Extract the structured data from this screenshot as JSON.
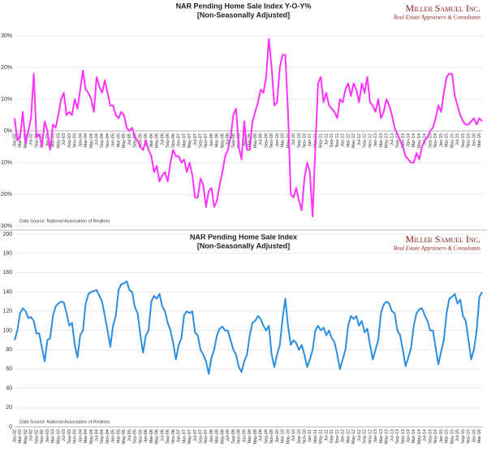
{
  "chart_data": [
    {
      "type": "line",
      "title": "NAR Pending Home Sale Index Y-O-Y%",
      "subtitle": "[Non-Seasonally Adjusted]",
      "brand": "Miller Samuel Inc.",
      "brand_tagline": "Real Estate Appraisers & Consultants",
      "source": "Data Source: National Association of Realtors",
      "categories": [
        "Jan-02",
        null,
        "Mar-02",
        null,
        "May-02",
        null,
        "Jul-02",
        null,
        "Sep-02",
        null,
        "Nov-02",
        null,
        "Jan-03",
        null,
        "Mar-03",
        null,
        "May-03",
        null,
        "Jul-03",
        null,
        "Sep-03",
        null,
        "Nov-03",
        null,
        "Jan-04",
        null,
        "Mar-04",
        null,
        "May-04",
        null,
        "Jul-04",
        null,
        "Sep-04",
        null,
        "Nov-04",
        null,
        "Jan-05",
        null,
        "Mar-05",
        null,
        "May-05",
        null,
        "Jul-05",
        null,
        "Sep-05",
        null,
        "Nov-05",
        null,
        "Jan-06",
        null,
        "Mar-06",
        null,
        "May-06",
        null,
        "Jul-06",
        null,
        "Sep-06",
        null,
        "Nov-06",
        null,
        "Jan-07",
        null,
        "Mar-07",
        null,
        "May-07",
        null,
        "Jul-07",
        null,
        "Sep-07",
        null,
        "Nov-07",
        null,
        "Jan-08",
        null,
        "Mar-08",
        null,
        "May-08",
        null,
        "Jul-08",
        null,
        "Sep-08",
        null,
        "Nov-08",
        null,
        "Jan-09",
        null,
        "Mar-09",
        null,
        "May-09",
        null,
        "Jul-09",
        null,
        "Sep-09",
        null,
        "Nov-09",
        null,
        "Jan-10",
        null,
        "Mar-10",
        null,
        "May-10",
        null,
        "Jul-10",
        null,
        "Sep-10",
        null,
        "Nov-10",
        null,
        "Jan-11",
        null,
        "Mar-11",
        null,
        "May-11",
        null,
        "Jul-11",
        null,
        "Sep-11",
        null,
        "Nov-11",
        null,
        "Jan-12",
        null,
        "Mar-12",
        null,
        "May-12",
        null,
        "Jul-12",
        null,
        "Sep-12",
        null,
        "Nov-12",
        null,
        "Jan-13",
        null,
        "Mar-13",
        null,
        "May-13",
        null,
        "Jul-13",
        null,
        "Sep-13",
        null,
        "Nov-13",
        null,
        "Jan-14",
        null,
        "Mar-14",
        null,
        "May-14",
        null,
        "Jul-14",
        null,
        "Sep-14",
        null,
        "Nov-14",
        null,
        "Jan-15",
        null,
        "Mar-15",
        null,
        "May-15",
        null,
        "Jul-15",
        null,
        "Sep-15",
        null,
        "Nov-15",
        null,
        "Jan-16",
        null,
        "Mar-16",
        null
      ],
      "series": [
        {
          "color": "#ff33ff",
          "values": [
            4,
            -3,
            -2,
            6,
            -4,
            0,
            4,
            18,
            -2,
            -1,
            -5,
            3,
            0,
            -6,
            2,
            1,
            5,
            10,
            12,
            5,
            6,
            5,
            10,
            7,
            13,
            19,
            13,
            12,
            10,
            6,
            17,
            14,
            12,
            16,
            12,
            8,
            8,
            5,
            4,
            6,
            5,
            1,
            0,
            1,
            -2,
            -3,
            -5,
            -6,
            -3,
            -6,
            -8,
            -13,
            -11,
            -16,
            -14,
            -13,
            -16,
            -10,
            -6,
            -8,
            -8,
            -10,
            -9,
            -13,
            -10,
            -14,
            -21,
            -21,
            -15,
            -17,
            -24,
            -19,
            -18,
            -24,
            -22,
            -17,
            -13,
            -8,
            -6,
            -2,
            5,
            7,
            -5,
            -9,
            3,
            -6,
            -6,
            3,
            6,
            9,
            13,
            12,
            17,
            29,
            20,
            8,
            9,
            20,
            24,
            24,
            6,
            -20,
            -21,
            -18,
            -22,
            -25,
            -15,
            -10,
            -13,
            -27,
            -5,
            15,
            17,
            9,
            12,
            8,
            7,
            6,
            4,
            10,
            9,
            13,
            15,
            11,
            15,
            13,
            9,
            15,
            12,
            17,
            9,
            8,
            6,
            10,
            4,
            6,
            10,
            8,
            5,
            1,
            -1,
            -3,
            -5,
            -8,
            -9,
            -10,
            -10,
            -7,
            -9,
            -5,
            -3,
            -2,
            0,
            1,
            4,
            8,
            6,
            12,
            17,
            18,
            18,
            11,
            8,
            5,
            3,
            2,
            2,
            3,
            4,
            2,
            4,
            3
          ]
        }
      ],
      "ylim": [
        -30,
        30
      ],
      "yticks": [
        {
          "value": -30,
          "label": "-30%"
        },
        {
          "value": -20,
          "label": "-20%"
        },
        {
          "value": -10,
          "label": "-10%"
        },
        {
          "value": 0,
          "label": "0%"
        },
        {
          "value": 10,
          "label": "10%"
        },
        {
          "value": 20,
          "label": "20%"
        },
        {
          "value": 30,
          "label": "30%"
        }
      ],
      "grid": true
    },
    {
      "type": "line",
      "title": "NAR Pending Home Sale Index",
      "subtitle": "[Non-Seasonally Adjusted]",
      "brand": "Miller Samuel Inc.",
      "brand_tagline": "Real Estate Appraisers & Consultants",
      "source": "Data Source: National Association of Realtors",
      "categories": [
        "Jan-02",
        null,
        "Mar-02",
        null,
        "May-02",
        null,
        "Jul-02",
        null,
        "Sep-02",
        null,
        "Nov-02",
        null,
        "Jan-03",
        null,
        "Mar-03",
        null,
        "May-03",
        null,
        "Jul-03",
        null,
        "Sep-03",
        null,
        "Nov-03",
        null,
        "Jan-04",
        null,
        "Mar-04",
        null,
        "May-04",
        null,
        "Jul-04",
        null,
        "Sep-04",
        null,
        "Nov-04",
        null,
        "Jan-05",
        null,
        "Mar-05",
        null,
        "May-05",
        null,
        "Jul-05",
        null,
        "Sep-05",
        null,
        "Nov-05",
        null,
        "Jan-06",
        null,
        "Mar-06",
        null,
        "May-06",
        null,
        "Jul-06",
        null,
        "Sep-06",
        null,
        "Nov-06",
        null,
        "Jan-07",
        null,
        "Mar-07",
        null,
        "May-07",
        null,
        "Jul-07",
        null,
        "Sep-07",
        null,
        "Nov-07",
        null,
        "Jan-08",
        null,
        "Mar-08",
        null,
        "May-08",
        null,
        "Jul-08",
        null,
        "Sep-08",
        null,
        "Nov-08",
        null,
        "Jan-09",
        null,
        "Mar-09",
        null,
        "May-09",
        null,
        "Jul-09",
        null,
        "Sep-09",
        null,
        "Nov-09",
        null,
        "Jan-10",
        null,
        "Mar-10",
        null,
        "May-10",
        null,
        "Jul-10",
        null,
        "Sep-10",
        null,
        "Nov-10",
        null,
        "Jan-11",
        null,
        "Mar-11",
        null,
        "May-11",
        null,
        "Jul-11",
        null,
        "Sep-11",
        null,
        "Nov-11",
        null,
        "Jan-12",
        null,
        "Mar-12",
        null,
        "May-12",
        null,
        "Jul-12",
        null,
        "Sep-12",
        null,
        "Nov-12",
        null,
        "Jan-13",
        null,
        "Mar-13",
        null,
        "May-13",
        null,
        "Jul-13",
        null,
        "Sep-13",
        null,
        "Nov-13",
        null,
        "Jan-14",
        null,
        "Mar-14",
        null,
        "May-14",
        null,
        "Jul-14",
        null,
        "Sep-14",
        null,
        "Nov-14",
        null,
        "Jan-15",
        null,
        "Mar-15",
        null,
        "May-15",
        null,
        "Jul-15",
        null,
        "Sep-15",
        null,
        "Nov-15",
        null,
        "Jan-16",
        null,
        "Mar-16",
        null
      ],
      "series": [
        {
          "color": "#2b8ee0",
          "values": [
            90,
            100,
            118,
            123,
            120,
            113,
            114,
            110,
            97,
            97,
            82,
            68,
            90,
            92,
            115,
            125,
            128,
            130,
            129,
            118,
            105,
            108,
            85,
            72,
            95,
            100,
            128,
            138,
            140,
            141,
            142,
            136,
            130,
            115,
            100,
            83,
            105,
            115,
            142,
            148,
            149,
            151,
            142,
            140,
            124,
            118,
            95,
            77,
            95,
            100,
            130,
            136,
            133,
            138,
            125,
            120,
            108,
            100,
            87,
            70,
            85,
            92,
            116,
            120,
            118,
            120,
            98,
            95,
            80,
            75,
            68,
            55,
            72,
            80,
            95,
            102,
            104,
            100,
            100,
            90,
            80,
            75,
            62,
            57,
            68,
            75,
            95,
            108,
            110,
            115,
            112,
            105,
            100,
            105,
            75,
            62,
            75,
            85,
            112,
            133,
            105,
            85,
            90,
            87,
            80,
            85,
            75,
            62,
            70,
            80,
            100,
            105,
            100,
            103,
            95,
            100,
            92,
            88,
            75,
            60,
            70,
            80,
            105,
            115,
            112,
            115,
            105,
            110,
            98,
            102,
            85,
            70,
            80,
            90,
            118,
            127,
            130,
            128,
            120,
            118,
            100,
            95,
            80,
            63,
            72,
            82,
            105,
            118,
            122,
            123,
            116,
            110,
            100,
            100,
            82,
            65,
            78,
            90,
            118,
            133,
            135,
            138,
            128,
            132,
            115,
            110,
            90,
            70,
            80,
            100,
            135,
            140
          ]
        }
      ],
      "ylim": [
        0,
        200
      ],
      "yticks": [
        0,
        20,
        40,
        60,
        80,
        100,
        120,
        140,
        160,
        180,
        200
      ],
      "grid": true
    }
  ]
}
